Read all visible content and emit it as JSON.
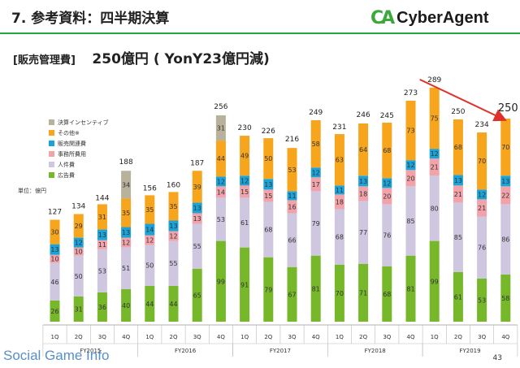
{
  "slide": {
    "title": "7. 参考資料：四半期決算",
    "subtitle_label": "[販売管理費]",
    "subtitle_value": "250億円 ( YonY23億円減)",
    "unit_label": "単位：億円",
    "page_number": "43",
    "logo_text": "CyberAgent",
    "logo_mark": "CA",
    "watermark_text": "Social Game Info"
  },
  "colors": {
    "incentive": "#b8b29c",
    "other": "#f6a51c",
    "sales": "#1ba3d8",
    "office": "#f2a3aa",
    "personnel": "#cfc7df",
    "advertising": "#76b82a",
    "arrow": "#e0302a"
  },
  "chart_data": {
    "type": "bar",
    "stacked": true,
    "categories": [
      "1Q",
      "2Q",
      "3Q",
      "4Q",
      "1Q",
      "2Q",
      "3Q",
      "4Q",
      "1Q",
      "2Q",
      "3Q",
      "4Q",
      "1Q",
      "2Q",
      "3Q",
      "4Q",
      "1Q",
      "2Q",
      "3Q",
      "4Q"
    ],
    "groups": [
      {
        "label": "FY2015",
        "start": 0,
        "end": 3
      },
      {
        "label": "FY2016",
        "start": 4,
        "end": 7
      },
      {
        "label": "FY2017",
        "start": 8,
        "end": 11
      },
      {
        "label": "FY2018",
        "start": 12,
        "end": 15
      },
      {
        "label": "FY2019",
        "start": 16,
        "end": 19
      }
    ],
    "series": [
      {
        "key": "advertising",
        "name": "広告費",
        "values": [
          26,
          31,
          36,
          40,
          44,
          44,
          65,
          99,
          91,
          79,
          67,
          81,
          70,
          71,
          68,
          81,
          99,
          61,
          53,
          58
        ]
      },
      {
        "key": "personnel",
        "name": "人件費",
        "values": [
          46,
          50,
          53,
          51,
          50,
          55,
          55,
          53,
          61,
          68,
          66,
          79,
          68,
          77,
          76,
          85,
          80,
          85,
          76,
          86
        ]
      },
      {
        "key": "office",
        "name": "事務所費用",
        "values": [
          10,
          10,
          11,
          12,
          12,
          12,
          13,
          14,
          15,
          15,
          16,
          17,
          18,
          18,
          20,
          20,
          21,
          21,
          21,
          22
        ]
      },
      {
        "key": "sales",
        "name": "販売関連費",
        "values": [
          13,
          12,
          13,
          13,
          14,
          13,
          13,
          12,
          12,
          13,
          11,
          12,
          11,
          13,
          12,
          12,
          12,
          13,
          12,
          13
        ]
      },
      {
        "key": "other",
        "name": "その他※",
        "values": [
          30,
          29,
          31,
          35,
          35,
          35,
          39,
          44,
          49,
          50,
          53,
          58,
          63,
          64,
          68,
          73,
          75,
          68,
          70,
          70
        ]
      },
      {
        "key": "incentive",
        "name": "決算インセンティブ",
        "values": [
          null,
          null,
          null,
          34,
          null,
          null,
          null,
          31,
          null,
          null,
          null,
          null,
          null,
          null,
          null,
          null,
          null,
          null,
          null,
          null
        ]
      }
    ],
    "totals": [
      127,
      134,
      144,
      188,
      156,
      160,
      187,
      256,
      230,
      226,
      216,
      249,
      231,
      246,
      245,
      273,
      289,
      250,
      234,
      250
    ],
    "legend_order": [
      "incentive",
      "other",
      "sales",
      "office",
      "personnel",
      "advertising"
    ],
    "legend_position": "left",
    "highlight_total": 250,
    "ylim": [
      0,
      300
    ],
    "arrow": {
      "from_index": 16,
      "to_index": 19
    }
  }
}
